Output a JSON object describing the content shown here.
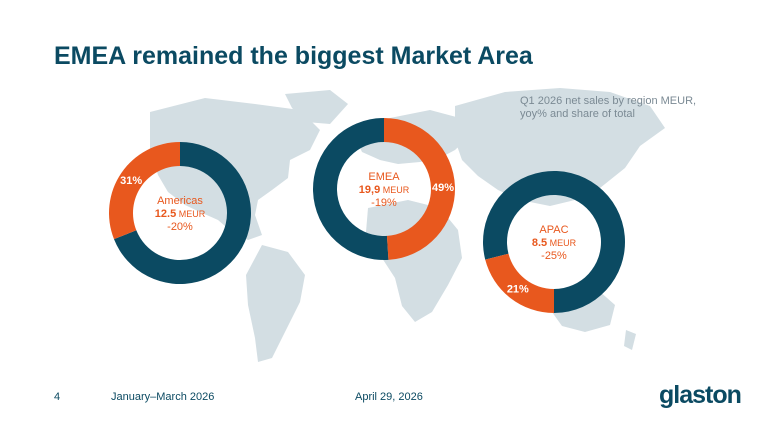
{
  "slide": {
    "title": "EMEA remained the biggest Market Area",
    "subtitle": "Q1 2026 net sales by region MEUR, yoy% and share of total",
    "page_number": "4",
    "period": "January–March 2026",
    "date": "April 29, 2026",
    "logo_text": "glaston"
  },
  "colors": {
    "primary": "#0b4a62",
    "accent": "#e8581e",
    "map": "#d3dee3"
  },
  "chart_data": [
    {
      "type": "pie",
      "region": "Americas",
      "value": "12.5",
      "unit": "MEUR",
      "yoy": "-20%",
      "share": 31,
      "share_label": "31%"
    },
    {
      "type": "pie",
      "region": "EMEA",
      "value": "19,9",
      "unit": "MEUR",
      "yoy": "-19%",
      "share": 49,
      "share_label": "49%"
    },
    {
      "type": "pie",
      "region": "APAC",
      "value": "8.5",
      "unit": "MEUR",
      "yoy": "-25%",
      "share": 21,
      "share_label": "21%"
    }
  ]
}
